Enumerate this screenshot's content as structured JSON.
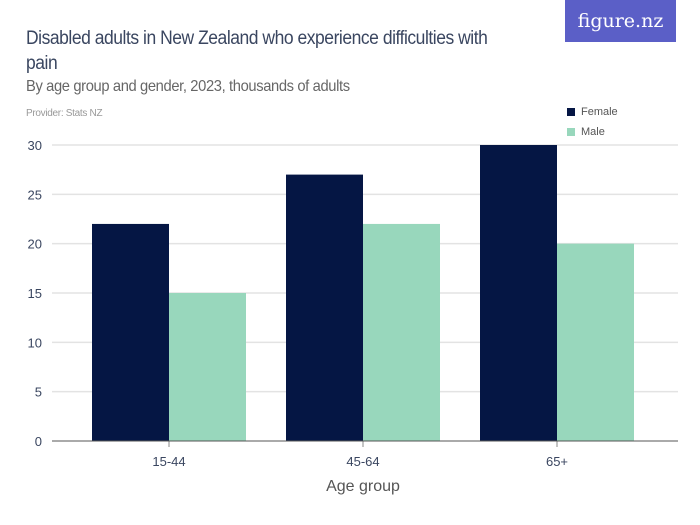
{
  "brand": {
    "logo": "figure.nz",
    "color": "#5b5fc7"
  },
  "chart_data": {
    "type": "bar",
    "title": "Disabled adults in New Zealand who experience difficulties with pain",
    "subtitle": "By age group and gender, 2023, thousands of adults",
    "provider": "Provider: Stats NZ",
    "xlabel": "Age group",
    "ylabel": "",
    "categories": [
      "15-44",
      "45-64",
      "65+"
    ],
    "series": [
      {
        "name": "Female",
        "values": [
          22,
          27,
          30
        ],
        "color": "#051644"
      },
      {
        "name": "Male",
        "values": [
          15,
          22,
          20
        ],
        "color": "#98d7bc"
      }
    ],
    "ylim": [
      0,
      30
    ],
    "yticks": [
      "0",
      "5",
      "10",
      "15",
      "20",
      "25",
      "30"
    ],
    "grid": true,
    "legend": "top-right"
  }
}
